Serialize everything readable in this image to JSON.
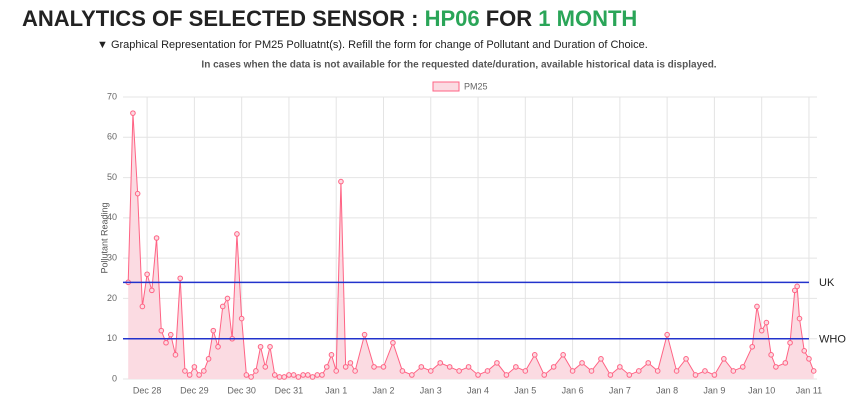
{
  "header": {
    "title_parts": [
      "ANALYTICS OF SELECTED SENSOR : ",
      "HP06",
      " FOR ",
      "1 MONTH"
    ],
    "description": "▼ Graphical Representation for PM25 Polluatnt(s). Refill the form for change of Pollutant and Duration of Choice.",
    "note": "In cases when the data is not available for the requested date/duration, available historical data is displayed."
  },
  "chart_data": {
    "type": "line",
    "y_label": "Pollutant Reading",
    "x": [
      -0.4,
      -0.3,
      -0.2,
      -0.1,
      0,
      0.1,
      0.2,
      0.3,
      0.4,
      0.5,
      0.6,
      0.7,
      0.8,
      0.9,
      1,
      1.1,
      1.2,
      1.3,
      1.4,
      1.5,
      1.6,
      1.7,
      1.8,
      1.9,
      2,
      2.1,
      2.2,
      2.3,
      2.4,
      2.5,
      2.6,
      2.7,
      2.8,
      2.9,
      3,
      3.1,
      3.2,
      3.3,
      3.4,
      3.5,
      3.6,
      3.7,
      3.8,
      3.9,
      4,
      4.1,
      4.2,
      4.3,
      4.4,
      4.6,
      4.8,
      5,
      5.2,
      5.4,
      5.6,
      5.8,
      6,
      6.2,
      6.4,
      6.6,
      6.8,
      7,
      7.2,
      7.4,
      7.6,
      7.8,
      8,
      8.2,
      8.4,
      8.6,
      8.8,
      9,
      9.2,
      9.4,
      9.6,
      9.8,
      10,
      10.2,
      10.4,
      10.6,
      10.8,
      11,
      11.2,
      11.4,
      11.6,
      11.8,
      12,
      12.2,
      12.4,
      12.6,
      12.8,
      12.9,
      13,
      13.1,
      13.2,
      13.3,
      13.5,
      13.6,
      13.7,
      13.75,
      13.8,
      13.9,
      14,
      14.1
    ],
    "series": [
      {
        "name": "PM25",
        "color": "#ff6384",
        "fill": "#fbdbe2",
        "values": [
          24,
          66,
          46,
          18,
          26,
          22,
          35,
          12,
          9,
          11,
          6,
          25,
          2,
          1,
          3,
          1,
          2,
          5,
          12,
          8,
          18,
          20,
          10,
          36,
          15,
          1,
          0.5,
          2,
          8,
          3,
          8,
          1,
          0.5,
          0.5,
          1,
          1,
          0.5,
          1,
          1,
          0.5,
          1,
          1,
          3,
          6,
          2,
          49,
          3,
          4,
          2,
          11,
          3,
          3,
          9,
          2,
          1,
          3,
          2,
          4,
          3,
          2,
          3,
          1,
          2,
          4,
          1,
          3,
          2,
          6,
          1,
          3,
          6,
          2,
          4,
          2,
          5,
          1,
          3,
          1,
          2,
          4,
          2,
          11,
          2,
          5,
          1,
          2,
          1,
          5,
          2,
          3,
          8,
          18,
          12,
          14,
          6,
          3,
          4,
          9,
          22,
          23,
          15,
          7,
          5,
          2
        ]
      }
    ],
    "xlim": [
      -0.51,
      14.17
    ],
    "xticks": [
      {
        "value": 0,
        "label": "Dec 28"
      },
      {
        "value": 1,
        "label": "Dec 29"
      },
      {
        "value": 2,
        "label": "Dec 30"
      },
      {
        "value": 3,
        "label": "Dec 31"
      },
      {
        "value": 4,
        "label": "Jan 1"
      },
      {
        "value": 5,
        "label": "Jan 2"
      },
      {
        "value": 6,
        "label": "Jan 3"
      },
      {
        "value": 7,
        "label": "Jan 4"
      },
      {
        "value": 8,
        "label": "Jan 5"
      },
      {
        "value": 9,
        "label": "Jan 6"
      },
      {
        "value": 10,
        "label": "Jan 7"
      },
      {
        "value": 11,
        "label": "Jan 8"
      },
      {
        "value": 12,
        "label": "Jan 9"
      },
      {
        "value": 13,
        "label": "Jan 10"
      },
      {
        "value": 14,
        "label": "Jan 11"
      }
    ],
    "ylim": [
      0,
      70
    ],
    "yticks": [
      0,
      10,
      20,
      30,
      40,
      50,
      60,
      70
    ],
    "grid": true,
    "reference_lines": [
      {
        "label": "UK",
        "value": 24,
        "color": "#2233cc"
      },
      {
        "label": "WHO",
        "value": 10,
        "color": "#2233cc"
      }
    ]
  }
}
